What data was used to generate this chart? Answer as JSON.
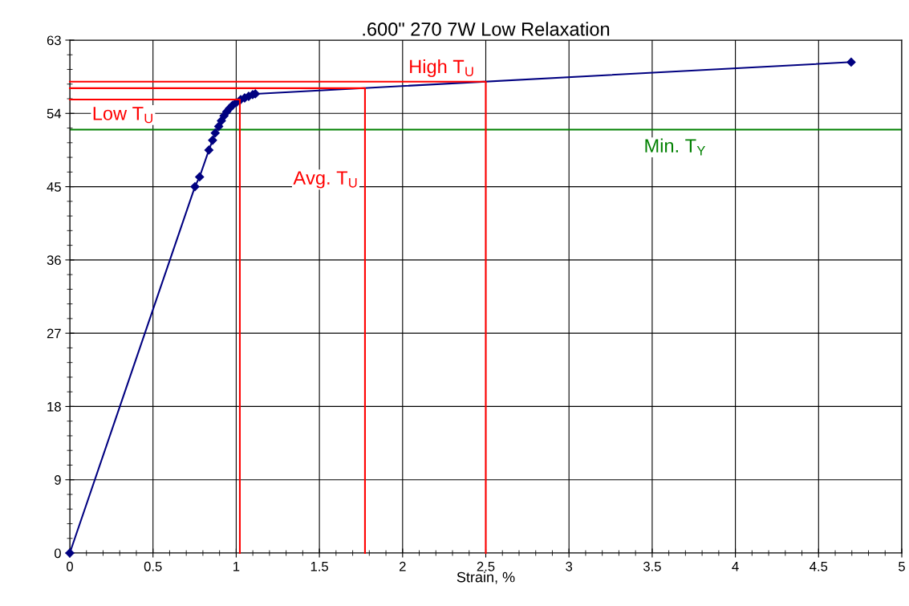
{
  "chart_data": {
    "type": "line",
    "title": ".600\" 270 7W Low Relaxation",
    "xlabel": "Strain, %",
    "xlim": [
      0,
      5
    ],
    "xticks": [
      0,
      0.5,
      1,
      1.5,
      2,
      2.5,
      3,
      3.5,
      4,
      4.5,
      5
    ],
    "ylim": [
      0,
      63
    ],
    "yticks": [
      0,
      9,
      18,
      27,
      36,
      45,
      54,
      63
    ],
    "grid": true,
    "marker": "diamond",
    "line_style": "solid",
    "series": [
      {
        "color": "#000080",
        "x": [
          0,
          0.752,
          0.78,
          0.836,
          0.858,
          0.874,
          0.895,
          0.911,
          0.927,
          0.943,
          0.959,
          0.978,
          0.999,
          1.027,
          1.051,
          1.075,
          1.099,
          1.115,
          4.696
        ],
        "values": [
          0,
          45.0,
          46.2,
          49.5,
          50.7,
          51.6,
          52.4,
          53.1,
          53.7,
          54.2,
          54.6,
          55.0,
          55.3,
          55.7,
          55.9,
          56.1,
          56.3,
          56.4,
          60.3
        ]
      },
      {
        "name": "Low T$_{U}$",
        "color": "#ff0000",
        "marker": "none",
        "x": [
          0,
          1.022,
          1.022
        ],
        "values": [
          55.7,
          55.7,
          0
        ]
      },
      {
        "name": "Avg. T$_{U}$",
        "color": "#ff0000",
        "marker": "none",
        "x": [
          0,
          1.774,
          1.774
        ],
        "values": [
          57.1,
          57.1,
          0
        ]
      },
      {
        "name": "High T$_{U}$",
        "color": "#ff0000",
        "marker": "none",
        "x": [
          0,
          2.5,
          2.5
        ],
        "values": [
          57.9,
          57.9,
          0
        ]
      }
    ],
    "ref_lines": [
      {
        "axis": "y",
        "value": 52,
        "label": "Min. T$_{Y}$",
        "color": "#008000"
      }
    ]
  }
}
